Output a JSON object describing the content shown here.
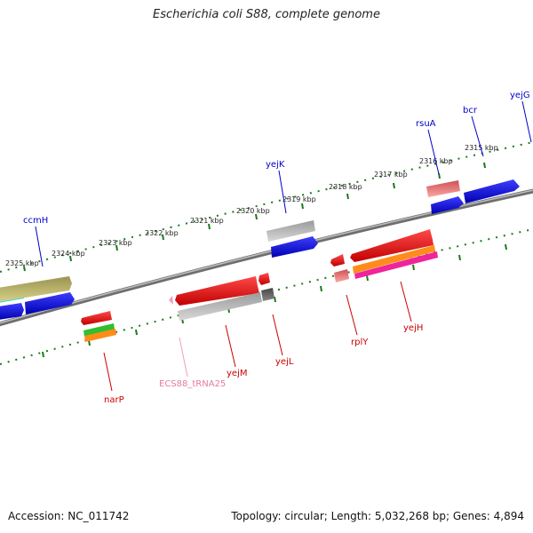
{
  "title": "Escherichia coli S88, complete genome",
  "accession_label": "Accession: NC_011742",
  "summary_label": "Topology: circular; Length: 5,032,268 bp; Genes: 4,894",
  "colors": {
    "backbone": "#808080",
    "ruler": "#1a7a1a",
    "forward_label": "#0000cc",
    "reverse_label": "#cc0000",
    "trna_label": "#e67aa6"
  },
  "kbp_labels": [
    "2325 kbp",
    "2324 kbp",
    "2323 kbp",
    "2322 kbp",
    "2321 kbp",
    "2320 kbp",
    "2319 kbp",
    "2318 kbp",
    "2317 kbp",
    "2316 kbp",
    "2315 kbp"
  ],
  "forward_genes": [
    "ccmH",
    "yejK",
    "rsuA",
    "bcr",
    "yejG"
  ],
  "reverse_genes": [
    "narP",
    "ECS88_tRNA25",
    "yejM",
    "yejL",
    "rplY",
    "yejH"
  ]
}
